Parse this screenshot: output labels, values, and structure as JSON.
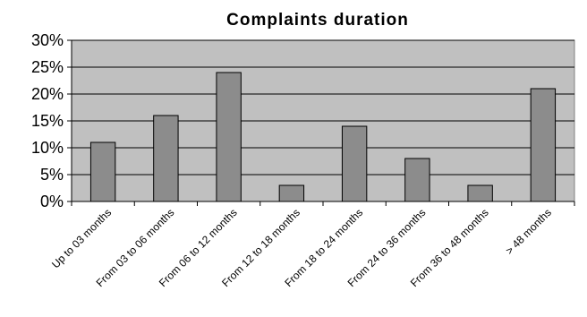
{
  "chart_data": {
    "type": "bar",
    "title": "Complaints duration",
    "xlabel": "",
    "ylabel": "",
    "categories": [
      "Up to 03 months",
      "From 03 to 06 months",
      "From 06 to 12 months",
      "From 12 to 18 months",
      "From 18 to 24 months",
      "From 24 to 36 months",
      "From 36 to 48 months",
      "> 48 months"
    ],
    "values": [
      11,
      16,
      24,
      3,
      14,
      8,
      3,
      21
    ],
    "value_unit": "%",
    "ylim": [
      0,
      30
    ],
    "yticks": [
      0,
      5,
      10,
      15,
      20,
      25,
      30
    ],
    "ytick_labels": [
      "0%",
      "5%",
      "10%",
      "15%",
      "20%",
      "25%",
      "30%"
    ],
    "grid": true,
    "legend": "none",
    "colors": {
      "plot_background": "#c0c0c0",
      "bar_fill": "#8c8c8c",
      "bar_stroke": "#000000"
    }
  }
}
